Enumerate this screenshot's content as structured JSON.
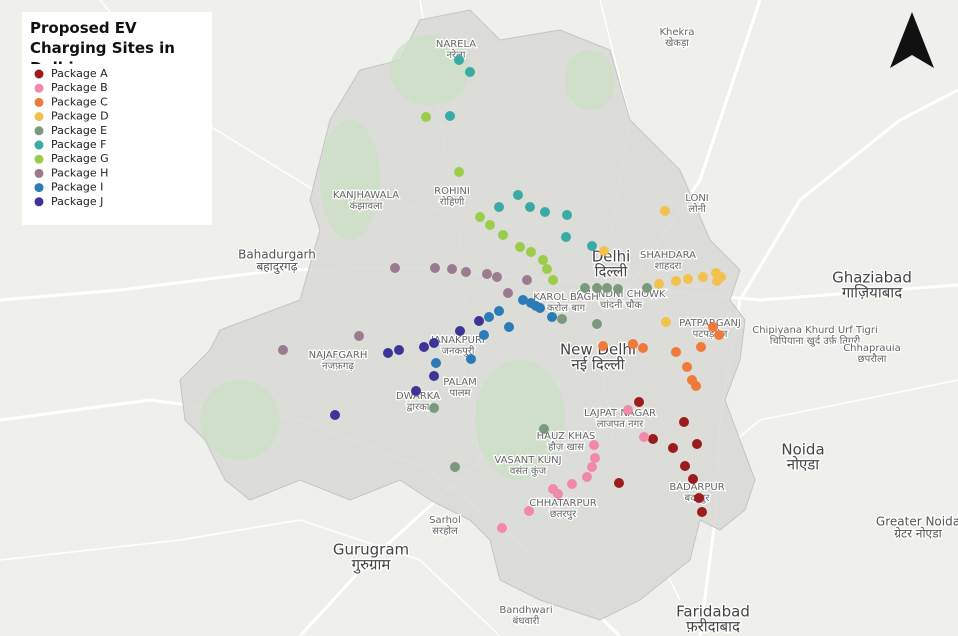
{
  "title": "Proposed EV Charging Sites in Delhi",
  "legend": [
    {
      "name": "Package A",
      "color": "#9b1c1c"
    },
    {
      "name": "Package B",
      "color": "#f18aa9"
    },
    {
      "name": "Package C",
      "color": "#ef7a3c"
    },
    {
      "name": "Package D",
      "color": "#f2c14e"
    },
    {
      "name": "Package E",
      "color": "#7b9a7d"
    },
    {
      "name": "Package F",
      "color": "#3aaaa5"
    },
    {
      "name": "Package G",
      "color": "#9bcd4b"
    },
    {
      "name": "Package H",
      "color": "#9b7b8f"
    },
    {
      "name": "Package I",
      "color": "#2b7bb7"
    },
    {
      "name": "Package J",
      "color": "#3c3595"
    }
  ],
  "places": [
    {
      "name": "Delhi",
      "local": "दिल्ली"
    },
    {
      "name": "New Delhi",
      "local": "नई दिल्ली"
    },
    {
      "name": "Ghaziabad",
      "local": "गाज़ियाबाद"
    },
    {
      "name": "Noida",
      "local": "नोएडा"
    },
    {
      "name": "Gurugram",
      "local": "गुरुग्राम"
    },
    {
      "name": "Faridabad",
      "local": "फ़रीदाबाद"
    },
    {
      "name": "Greater Noida",
      "local": "ग्रेटर नोएडा"
    },
    {
      "name": "Bahadurgarh",
      "local": "बहादुरगढ़"
    },
    {
      "name": "ROHINI",
      "local": "रोहिणी"
    },
    {
      "name": "NAJAFGARH",
      "local": "नजफ़गढ़"
    },
    {
      "name": "SHAHDARA",
      "local": "शाहदरा"
    },
    {
      "name": "CHANDNI CHOWK",
      "local": "चांदनी चौक"
    },
    {
      "name": "KAROL BAGH",
      "local": "करोल बाग"
    },
    {
      "name": "HAUZ KHAS",
      "local": "हौज़ खास"
    },
    {
      "name": "LAJPAT NAGAR",
      "local": "लाजपत नगर"
    },
    {
      "name": "JANAKPURI",
      "local": "जनकपुरी"
    },
    {
      "name": "NARELA",
      "local": "नरेला"
    },
    {
      "name": "DWARKA",
      "local": "द्वारका"
    },
    {
      "name": "VASANT KUNJ",
      "local": "वसंत कुंज"
    },
    {
      "name": "CHHATARPUR",
      "local": "छतरपुर"
    },
    {
      "name": "BADARPUR",
      "local": "बदरपुर"
    },
    {
      "name": "LONI",
      "local": "लोनी"
    },
    {
      "name": "Khekra",
      "local": "खेकड़ा"
    },
    {
      "name": "Sarhol",
      "local": "सरहोल"
    },
    {
      "name": "Bandhwari",
      "local": "बंधवारी"
    },
    {
      "name": "PATPARGANJ",
      "local": "पटपड़गंज"
    },
    {
      "name": "PALAM",
      "local": "पालम"
    },
    {
      "name": "KANJHAWALA",
      "local": "कंझावला"
    },
    {
      "name": "Chipiyana Khurd Urf Tigri",
      "local": "चिपियाना खुर्द उर्फ़ तिगरी"
    },
    {
      "name": "Chhaprauia",
      "local": "छपरौला"
    }
  ]
}
